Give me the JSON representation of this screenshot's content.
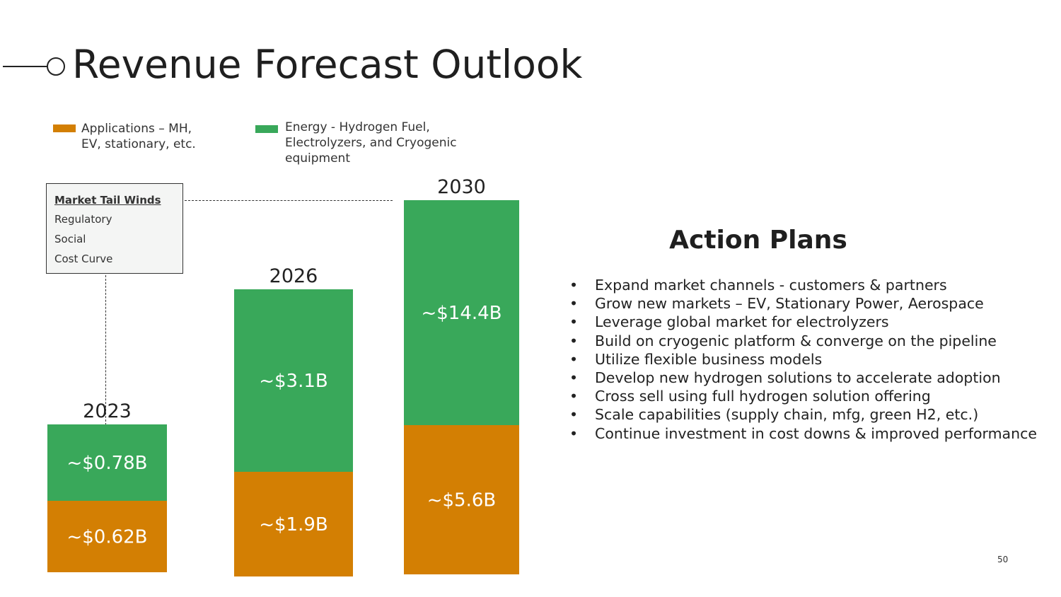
{
  "slide": {
    "title": "Revenue Forecast Outlook",
    "page_number": "50"
  },
  "legend": [
    {
      "label_line1": "Applications – MH,",
      "label_line2": "EV, stationary, etc.",
      "color": "#d37f03"
    },
    {
      "label_line1": "Energy - Hydrogen Fuel,",
      "label_line2": "Electrolyzers, and Cryogenic",
      "label_line3": "equipment",
      "color": "#39a85a"
    }
  ],
  "tailwinds": {
    "heading": "Market Tail Winds",
    "items": [
      "Regulatory",
      "Social",
      "Cost Curve"
    ]
  },
  "chart_data": {
    "type": "bar",
    "stacked": true,
    "categories": [
      "2023",
      "2026",
      "2030"
    ],
    "series": [
      {
        "name": "Applications – MH, EV, stationary, etc.",
        "values": [
          0.62,
          1.9,
          5.6
        ],
        "labels": [
          "~$0.62B",
          "~$1.9B",
          "~$5.6B"
        ],
        "color": "#d37f03"
      },
      {
        "name": "Energy - Hydrogen Fuel, Electrolyzers, and Cryogenic equipment",
        "values": [
          0.78,
          3.1,
          14.4
        ],
        "labels": [
          "~$0.78B",
          "~$3.1B",
          "~$14.4B"
        ],
        "color": "#39a85a"
      }
    ],
    "title": "",
    "xlabel": "",
    "ylabel": "",
    "unit": "$B",
    "grid": false,
    "legend_position": "top-left"
  },
  "action_plans": {
    "title": "Action Plans",
    "items": [
      "Expand market channels - customers & partners",
      "Grow new markets –  EV, Stationary Power, Aerospace",
      "Leverage global market for electrolyzers",
      "Build on cryogenic platform & converge on the pipeline",
      "Utilize flexible business models",
      "Develop new hydrogen solutions to accelerate adoption",
      "Cross sell using full hydrogen solution offering",
      "Scale capabilities (supply chain, mfg, green H2, etc.)",
      "Continue investment in cost downs & improved performance"
    ]
  }
}
